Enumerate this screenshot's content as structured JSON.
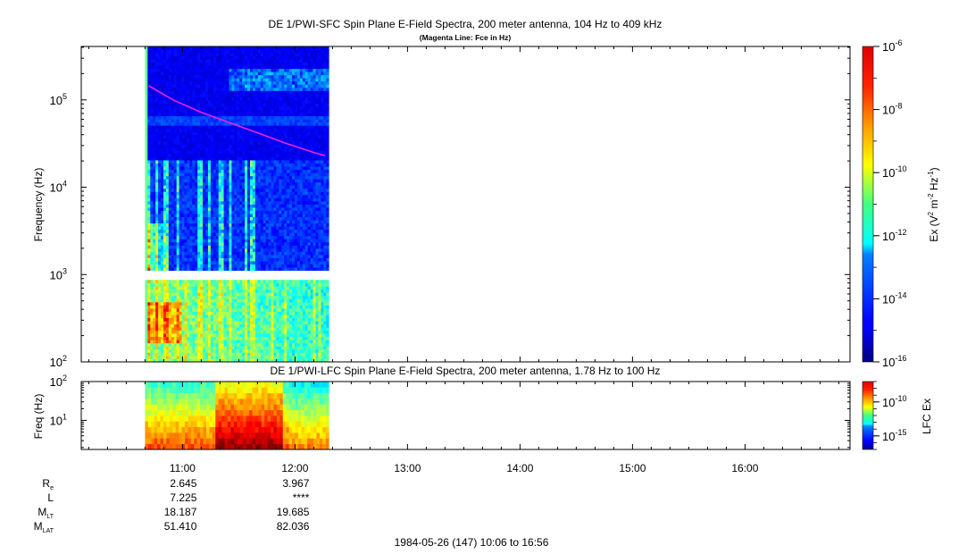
{
  "chart_data": [
    {
      "type": "heatmap",
      "title": "DE 1/PWI-SFC  Spin Plane E-Field Spectra, 200 meter antenna, 104 Hz to 409 kHz",
      "subtitle": "(Magenta Line: Fce in Hz)",
      "ylabel": "Frequency (Hz)",
      "yscale": "log",
      "ylim": [
        100,
        409000
      ],
      "y_ticks": [
        {
          "value": 100,
          "mant": "10",
          "exp": "2"
        },
        {
          "value": 1000,
          "mant": "10",
          "exp": "3"
        },
        {
          "value": 10000,
          "mant": "10",
          "exp": "4"
        },
        {
          "value": 100000,
          "mant": "10",
          "exp": "5"
        }
      ],
      "data_time_range": [
        "10:40",
        "12:18"
      ],
      "gap_frequency_range_hz": [
        880,
        1080
      ],
      "fce_line": {
        "color": "#ee22ee",
        "points": [
          {
            "t": "10:42",
            "f": 145000
          },
          {
            "t": "10:55",
            "f": 100000
          },
          {
            "t": "11:10",
            "f": 72000
          },
          {
            "t": "11:25",
            "f": 55000
          },
          {
            "t": "11:40",
            "f": 42000
          },
          {
            "t": "11:55",
            "f": 32000
          },
          {
            "t": "12:10",
            "f": 25000
          },
          {
            "t": "12:16",
            "f": 23000
          }
        ]
      },
      "colorbar": {
        "label": "Ex (V",
        "label_sup1": "2",
        "label_mid": " m",
        "label_sup2": "-2",
        "label_mid2": " Hz",
        "label_sup3": "-1",
        "label_end": ")",
        "range": [
          1e-16,
          1e-06
        ],
        "scale": "log",
        "ticks": [
          {
            "value": 1e-06,
            "mant": "10",
            "exp": "-6"
          },
          {
            "value": 1e-08,
            "mant": "10",
            "exp": "-8"
          },
          {
            "value": 1e-10,
            "mant": "10",
            "exp": "-10"
          },
          {
            "value": 1e-12,
            "mant": "10",
            "exp": "-12"
          },
          {
            "value": 1e-14,
            "mant": "10",
            "exp": "-14"
          },
          {
            "value": 1e-16,
            "mant": "10",
            "exp": "-16"
          }
        ]
      }
    },
    {
      "type": "heatmap",
      "title": "DE 1/PWI-LFC  Spin Plane E-Field Spectra, 200 meter antenna, 1.78 Hz to 100 Hz",
      "ylabel": "Freq (Hz)",
      "yscale": "log",
      "ylim": [
        1.78,
        100
      ],
      "y_ticks": [
        {
          "value": 10,
          "mant": "10",
          "exp": "1"
        },
        {
          "value": 100,
          "mant": "10",
          "exp": "2"
        }
      ],
      "data_time_range": [
        "10:40",
        "12:18"
      ],
      "colorbar": {
        "label": "LFC Ex",
        "range": [
          1e-17,
          1e-07
        ],
        "scale": "log",
        "ticks": [
          {
            "value": 1e-10,
            "mant": "10",
            "exp": "-10"
          },
          {
            "value": 1e-15,
            "mant": "10",
            "exp": "-15"
          }
        ]
      }
    }
  ],
  "x_axis": {
    "start": "10:06",
    "end": "16:56",
    "tick_labels": [
      "11:00",
      "12:00",
      "13:00",
      "14:00",
      "15:00",
      "16:00"
    ]
  },
  "ephemeris": {
    "rows": [
      {
        "label": "R",
        "sub": "e",
        "values": [
          "2.645",
          "3.967"
        ]
      },
      {
        "label": "L",
        "sub": "",
        "values": [
          "7.225",
          "****"
        ]
      },
      {
        "label": "M",
        "sub": "LT",
        "values": [
          "18.187",
          "19.685"
        ]
      },
      {
        "label": "M",
        "sub": "LAT",
        "values": [
          "51.410",
          "82.036"
        ]
      }
    ]
  },
  "footer": "1984-05-26 (147) 10:06 to 16:56"
}
